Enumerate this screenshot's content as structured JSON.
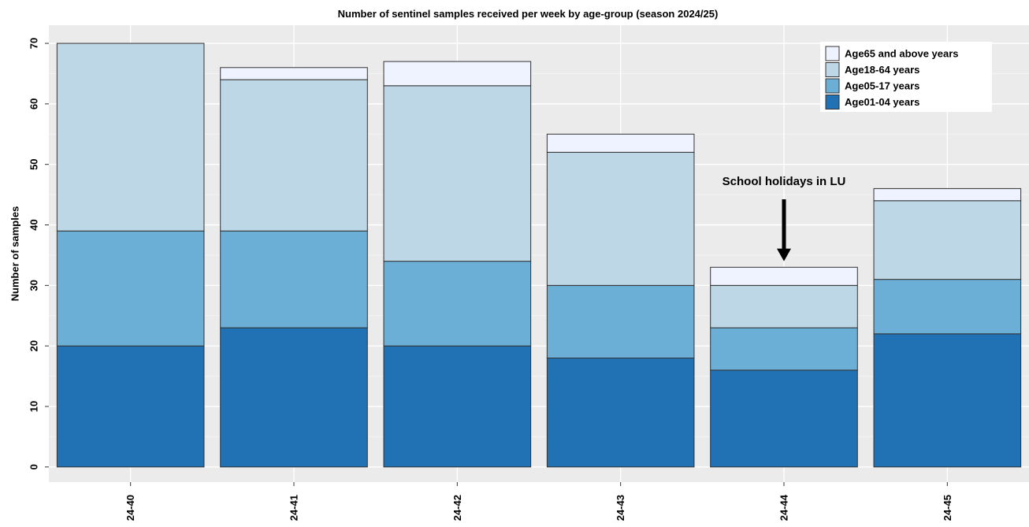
{
  "chart_data": {
    "type": "bar",
    "stacked": true,
    "title": "Number of sentinel samples received per week by age-group (season 2024/25)",
    "xlabel": "",
    "ylabel": "Number of samples",
    "ylim": [
      -2.5,
      73
    ],
    "yticks": [
      0,
      10,
      20,
      30,
      40,
      50,
      60,
      70
    ],
    "grid": true,
    "legend_position": "top-right",
    "categories": [
      "24-40",
      "24-41",
      "24-42",
      "24-43",
      "24-44",
      "24-45"
    ],
    "series": [
      {
        "name": "Age01-04 years",
        "color": "#2171b5",
        "values": [
          20,
          23,
          20,
          18,
          16,
          22
        ]
      },
      {
        "name": "Age05-17 years",
        "color": "#6baed6",
        "values": [
          19,
          16,
          14,
          12,
          7,
          9
        ]
      },
      {
        "name": "Age18-64 years",
        "color": "#bdd7e7",
        "values": [
          31,
          25,
          29,
          22,
          7,
          13
        ]
      },
      {
        "name": "Age65 and above years",
        "color": "#eff3ff",
        "values": [
          0,
          2,
          4,
          3,
          3,
          2
        ]
      }
    ],
    "legend_order": [
      3,
      2,
      1,
      0
    ],
    "annotations": [
      {
        "text": "School holidays in LU",
        "category": "24-44",
        "arrow_to_value": 34
      }
    ],
    "colors": {
      "panel_background": "#ebebeb",
      "grid_major": "#ffffff",
      "grid_minor": "#f4f4f4",
      "bar_outline": "#333333"
    }
  }
}
